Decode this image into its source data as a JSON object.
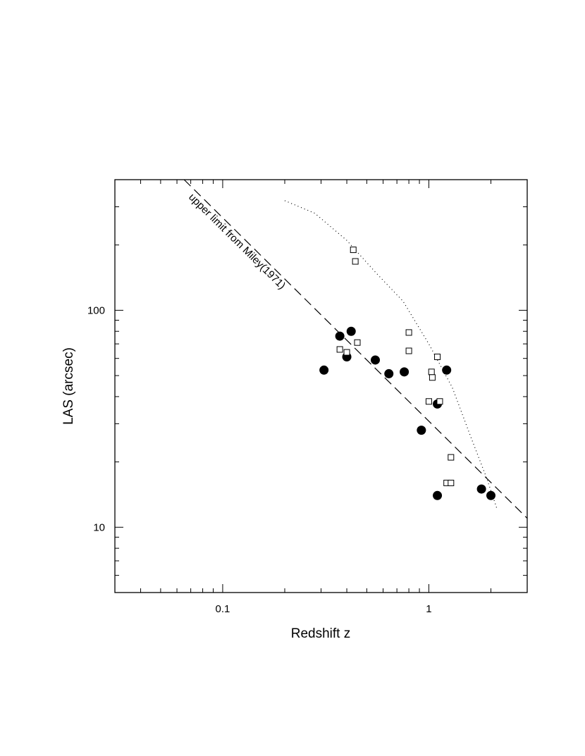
{
  "chart_data": {
    "type": "scatter",
    "xlabel": "Redshift z",
    "ylabel": "LAS (arcsec)",
    "xscale": "log",
    "yscale": "log",
    "xlim": [
      0.03,
      3.0
    ],
    "ylim": [
      5.0,
      400.0
    ],
    "x_ticks": [
      0.1,
      1
    ],
    "x_tick_labels": [
      "0.1",
      "1"
    ],
    "y_ticks": [
      10,
      100
    ],
    "y_tick_labels": [
      "10",
      "100"
    ],
    "grid": false,
    "legend": "none",
    "series": [
      {
        "marker": "filled-circle",
        "color": "#000000",
        "points": [
          [
            0.31,
            53
          ],
          [
            0.37,
            76
          ],
          [
            0.4,
            61
          ],
          [
            0.42,
            80
          ],
          [
            0.55,
            59
          ],
          [
            0.64,
            51
          ],
          [
            0.76,
            52
          ],
          [
            0.92,
            28
          ],
          [
            1.1,
            37
          ],
          [
            1.1,
            14
          ],
          [
            1.22,
            53
          ],
          [
            1.8,
            15
          ],
          [
            2.0,
            14
          ]
        ]
      },
      {
        "marker": "open-square",
        "color": "#000000",
        "points": [
          [
            0.43,
            190
          ],
          [
            0.44,
            168
          ],
          [
            0.37,
            66
          ],
          [
            0.4,
            64
          ],
          [
            0.45,
            71
          ],
          [
            0.8,
            79
          ],
          [
            0.8,
            65
          ],
          [
            1.0,
            38
          ],
          [
            1.03,
            52
          ],
          [
            1.04,
            49
          ],
          [
            1.1,
            61
          ],
          [
            1.13,
            38
          ],
          [
            1.22,
            16
          ],
          [
            1.28,
            16
          ],
          [
            1.28,
            21
          ]
        ]
      },
      {
        "style": "dashed",
        "color": "#000000",
        "points": [
          [
            0.065,
            400
          ],
          [
            3.0,
            11
          ]
        ]
      },
      {
        "style": "dotted",
        "color": "#000000",
        "points": [
          [
            0.2,
            320
          ],
          [
            0.28,
            280
          ],
          [
            0.4,
            210
          ],
          [
            0.55,
            150
          ],
          [
            0.75,
            110
          ],
          [
            1.0,
            70
          ],
          [
            1.3,
            44
          ],
          [
            1.6,
            26
          ],
          [
            1.9,
            17
          ],
          [
            2.15,
            12
          ]
        ]
      }
    ],
    "annotations": [
      {
        "text": "upper limit from Miley(1971)",
        "x": 0.068,
        "y": 330
      }
    ]
  }
}
